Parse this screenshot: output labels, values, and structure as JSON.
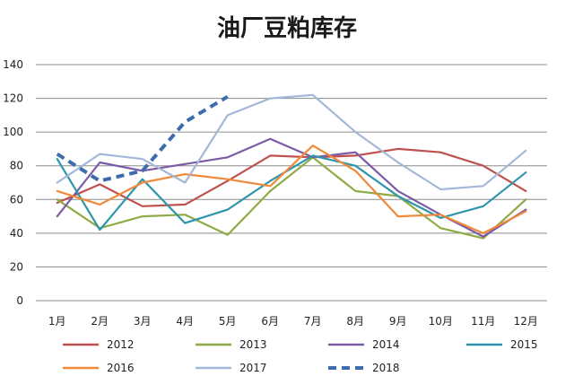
{
  "chart_data": {
    "type": "line",
    "title": "油厂豆粕库存",
    "xlabel": "",
    "ylabel": "",
    "categories": [
      "1月",
      "2月",
      "3月",
      "4月",
      "5月",
      "6月",
      "7月",
      "8月",
      "9月",
      "10月",
      "11月",
      "12月"
    ],
    "ylim": [
      0,
      140
    ],
    "yticks": [
      0,
      20,
      40,
      60,
      80,
      100,
      120,
      140
    ],
    "grid": true,
    "legend_position": "bottom",
    "series": [
      {
        "name": "2012",
        "color": "#c0504d",
        "dashed": false,
        "values": [
          58,
          69,
          56,
          57,
          71,
          86,
          85,
          86,
          90,
          88,
          80,
          65
        ]
      },
      {
        "name": "2013",
        "color": "#8fab45",
        "dashed": false,
        "values": [
          60,
          43,
          50,
          51,
          39,
          65,
          85,
          65,
          62,
          43,
          37,
          60
        ]
      },
      {
        "name": "2014",
        "color": "#7b5aa6",
        "dashed": false,
        "values": [
          50,
          82,
          77,
          81,
          85,
          96,
          85,
          88,
          65,
          51,
          38,
          54
        ]
      },
      {
        "name": "2015",
        "color": "#2e95ad",
        "dashed": false,
        "values": [
          84,
          42,
          72,
          46,
          54,
          71,
          86,
          80,
          62,
          49,
          56,
          76
        ]
      },
      {
        "name": "2016",
        "color": "#f08a3a",
        "dashed": false,
        "values": [
          65,
          57,
          70,
          75,
          72,
          68,
          92,
          77,
          50,
          51,
          40,
          53
        ]
      },
      {
        "name": "2017",
        "color": "#a3b8d8",
        "dashed": false,
        "values": [
          70,
          87,
          84,
          70,
          110,
          120,
          122,
          100,
          82,
          66,
          68,
          89
        ]
      },
      {
        "name": "2018",
        "color": "#3d6cad",
        "dashed": true,
        "values": [
          87,
          71,
          77,
          106,
          121,
          null,
          null,
          null,
          null,
          null,
          null,
          null
        ]
      }
    ]
  }
}
